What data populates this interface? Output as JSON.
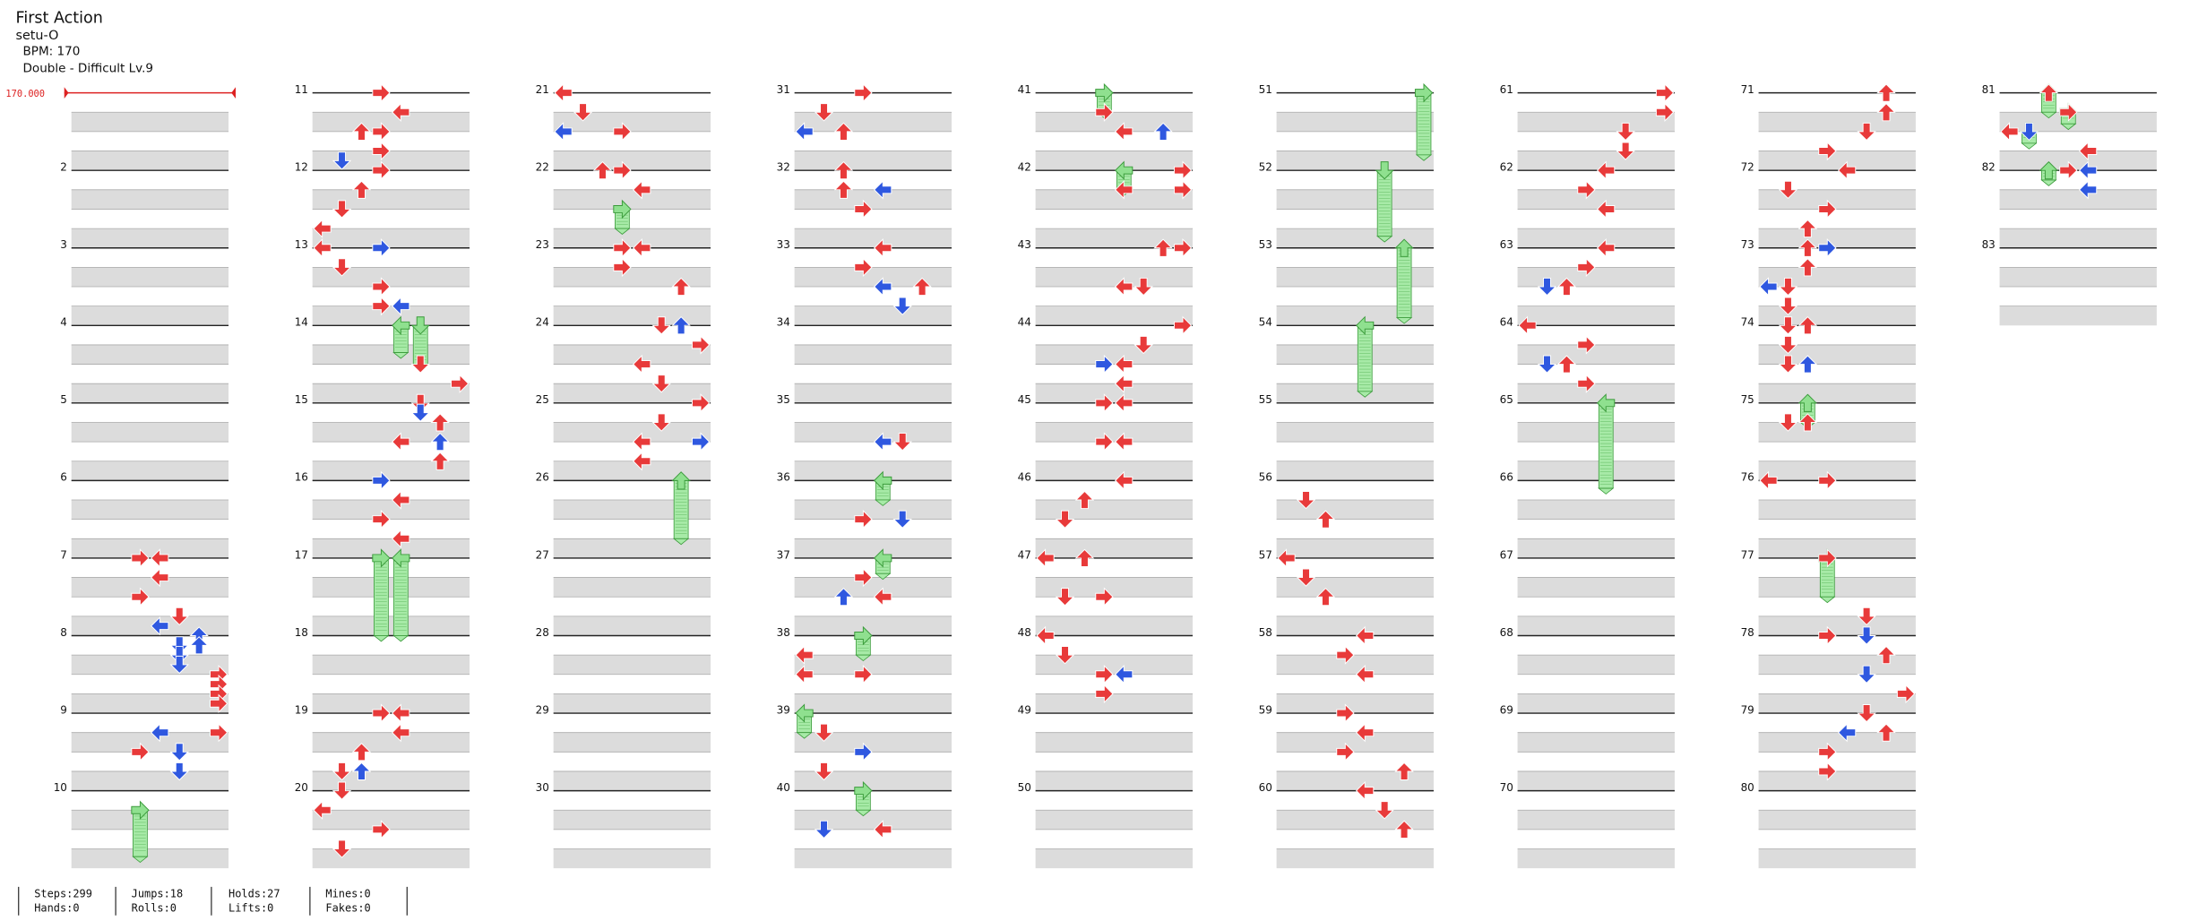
{
  "header": {
    "title": "First Action",
    "artist": "setu-O",
    "bpm": "BPM: 170",
    "difficulty": "Double - Difficult Lv.9"
  },
  "bpm_marker": "170.000",
  "measure_labels": [
    "2",
    "3",
    "4",
    "5",
    "6",
    "7",
    "8",
    "9",
    "10",
    "11",
    "12",
    "13",
    "14",
    "15",
    "16",
    "17",
    "18",
    "19",
    "20",
    "21",
    "22",
    "23",
    "24",
    "25",
    "26",
    "27",
    "28",
    "29",
    "30",
    "31",
    "32",
    "33",
    "34",
    "35",
    "36",
    "37",
    "38",
    "39",
    "40",
    "41",
    "42",
    "43",
    "44",
    "45",
    "46",
    "47",
    "48",
    "49",
    "50",
    "51",
    "52",
    "53",
    "54",
    "55",
    "56",
    "57",
    "58",
    "59",
    "60",
    "61",
    "62",
    "63",
    "64",
    "65",
    "66",
    "67",
    "68",
    "69",
    "70",
    "71",
    "72",
    "73",
    "74",
    "75",
    "76",
    "77",
    "78",
    "79",
    "80",
    "81",
    "82",
    "83"
  ],
  "stats": [
    [
      "Steps:299",
      "Hands:0"
    ],
    [
      "Jumps:18",
      "Rolls:0"
    ],
    [
      "Holds:27",
      "Lifts:0"
    ],
    [
      "Mines:0",
      "Fakes:0"
    ]
  ]
}
